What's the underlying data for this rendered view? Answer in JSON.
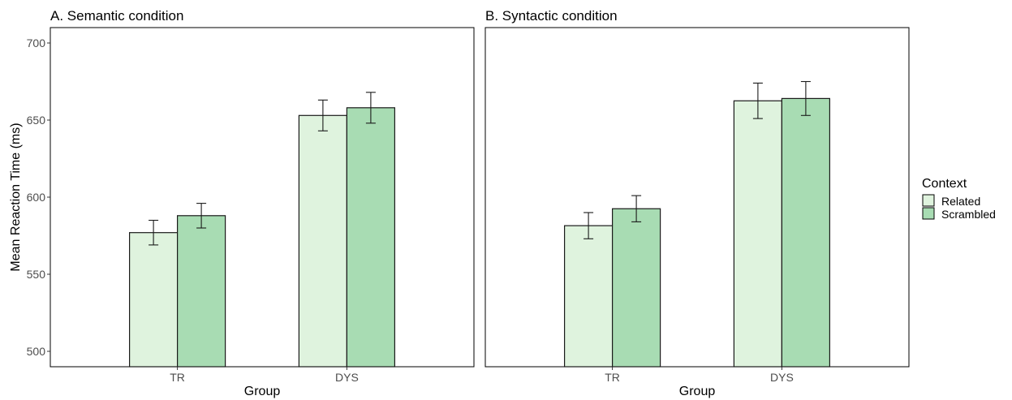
{
  "chart_data": {
    "type": "bar",
    "ylabel": "Mean Reaction Time (ms)",
    "xlabel": "Group",
    "ylim": [
      490,
      710
    ],
    "yticks": [
      500,
      550,
      600,
      650,
      700
    ],
    "categories": [
      "TR",
      "DYS"
    ],
    "legend": {
      "title": "Context",
      "placement": "right",
      "entries": [
        {
          "name": "Related",
          "color": "#dff3de"
        },
        {
          "name": "Scrambled",
          "color": "#a8dcb3"
        }
      ]
    },
    "panels": [
      {
        "title": "A. Semantic condition",
        "series": [
          {
            "name": "Related",
            "values": [
              577,
              653
            ],
            "err_low": [
              569,
              643
            ],
            "err_high": [
              585,
              663
            ]
          },
          {
            "name": "Scrambled",
            "values": [
              588,
              658
            ],
            "err_low": [
              580,
              648
            ],
            "err_high": [
              596,
              668
            ]
          }
        ]
      },
      {
        "title": "B. Syntactic condition",
        "series": [
          {
            "name": "Related",
            "values": [
              581.5,
              662.5
            ],
            "err_low": [
              573,
              651
            ],
            "err_high": [
              590,
              674
            ]
          },
          {
            "name": "Scrambled",
            "values": [
              592.5,
              664
            ],
            "err_low": [
              584,
              653
            ],
            "err_high": [
              601,
              675
            ]
          }
        ]
      }
    ],
    "grid": false
  }
}
